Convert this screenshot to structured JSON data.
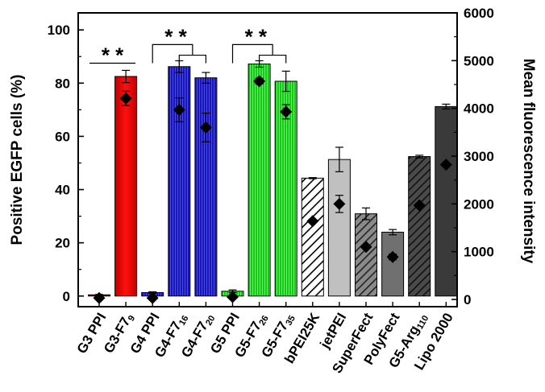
{
  "chart_data": {
    "type": "bar",
    "ylabel": "Positive EGFP cells (%)",
    "y2label": "Mean fluorescence intensity",
    "ylim": [
      -4,
      106.4
    ],
    "y2lim": [
      0,
      6000
    ],
    "yticks": [
      0,
      20,
      40,
      60,
      80,
      100
    ],
    "y2ticks": [
      0,
      1000,
      2000,
      3000,
      4000,
      5000,
      6000
    ],
    "categories": [
      {
        "label": "G3 PPI"
      },
      {
        "label": "G3-F7",
        "sub": "9"
      },
      {
        "label": "G4 PPI"
      },
      {
        "label": "G4-F7",
        "sub": "16"
      },
      {
        "label": "G4-F7",
        "sub": "20"
      },
      {
        "label": "G5 PPI"
      },
      {
        "label": "G5-F7",
        "sub": "26"
      },
      {
        "label": "G5-F7",
        "sub": "35"
      },
      {
        "label": "bPEI25K"
      },
      {
        "label": "jetPEI"
      },
      {
        "label": "SuperFect"
      },
      {
        "label": "PolyFect"
      },
      {
        "label": "G5-Arg",
        "sub": "110"
      },
      {
        "label": "Lipo 2000"
      }
    ],
    "series": [
      {
        "kind": "bar",
        "axis": "left",
        "values": [
          0.3,
          82.5,
          1.3,
          86.2,
          82.0,
          1.8,
          87.2,
          80.7,
          44.3,
          51.3,
          30.9,
          24.0,
          52.4,
          71.2
        ],
        "errors": [
          0.3,
          2.3,
          0.3,
          2.2,
          2.0,
          0.5,
          1.2,
          3.8,
          0.2,
          4.6,
          2.2,
          1.0,
          0.5,
          0.9
        ]
      },
      {
        "kind": "marker",
        "axis": "right",
        "values": [
          30,
          4210,
          30,
          3970,
          3600,
          50,
          4570,
          3930,
          1640,
          2000,
          1100,
          890,
          1970,
          2820
        ],
        "errors": [
          0,
          150,
          0,
          250,
          300,
          0,
          60,
          150,
          0,
          180,
          0,
          60,
          0,
          0
        ]
      }
    ],
    "bar_colors": [
      "#ff0000",
      "#ff0000",
      "#2222c8",
      "#2222c8",
      "#2222c8",
      "#22dd22",
      "#22dd22",
      "#22dd22",
      "#ffffff",
      "#c0c0c0",
      "#888888",
      "#707070",
      "#505050",
      "#3a3a3a"
    ],
    "bar_patterns": [
      "gradient",
      "gradient",
      "vlines",
      "vlines",
      "vlines",
      "vlines",
      "vlines",
      "vlines",
      "hatch-light",
      "solid",
      "hatch",
      "solid",
      "hatch-dark",
      "solid"
    ],
    "significance": [
      {
        "label": "* *",
        "type": "line",
        "from": 0,
        "to": 1,
        "y": 87.5
      },
      {
        "label": "* *",
        "type": "bracket",
        "from": 2,
        "to": [
          3,
          4
        ],
        "y": 94.5,
        "y2": 90.5
      },
      {
        "label": "* *",
        "type": "bracket",
        "from": 5,
        "to": [
          6,
          7
        ],
        "y": 94.5,
        "y2": 90.5
      }
    ]
  }
}
